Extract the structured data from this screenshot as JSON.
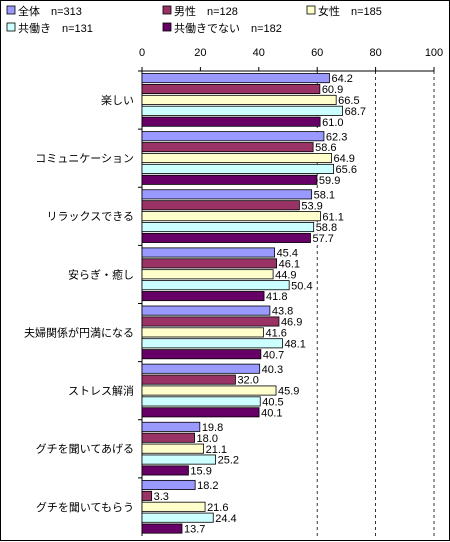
{
  "chart_data": {
    "type": "bar",
    "orientation": "horizontal",
    "categories": [
      "楽しい",
      "コミュニケーション",
      "リラックスできる",
      "安らぎ・癒し",
      "夫婦関係が円満になる",
      "ストレス解消",
      "グチを聞いてあげる",
      "グチを聞いてもらう"
    ],
    "series": [
      {
        "name": "全体　n=313",
        "color": "#9999ff",
        "values": [
          64.2,
          62.3,
          58.1,
          45.4,
          43.8,
          40.3,
          19.8,
          18.2
        ],
        "labels": [
          "64.2",
          "62.3",
          "58.1",
          "45.4",
          "43.8",
          "40.3",
          "19.8",
          "18.2"
        ]
      },
      {
        "name": "男性　n=128",
        "color": "#993366",
        "values": [
          60.9,
          58.6,
          53.9,
          46.1,
          46.9,
          32.0,
          18.0,
          3.3
        ],
        "labels": [
          "60.9",
          "58.6",
          "53.9",
          "46.1",
          "46.9",
          "32.0",
          "18.0",
          "3.3"
        ]
      },
      {
        "name": "女性　n=185",
        "color": "#ffffcc",
        "values": [
          66.5,
          64.9,
          61.1,
          44.9,
          41.6,
          45.9,
          21.1,
          21.6
        ],
        "labels": [
          "66.5",
          "64.9",
          "61.1",
          "44.9",
          "41.6",
          "45.9",
          "21.1",
          "21.6"
        ]
      },
      {
        "name": "共働き　n=131",
        "color": "#ccffff",
        "values": [
          68.7,
          65.6,
          58.8,
          50.4,
          48.1,
          40.5,
          25.2,
          24.4
        ],
        "labels": [
          "68.7",
          "65.6",
          "58.8",
          "50.4",
          "48.1",
          "40.5",
          "25.2",
          "24.4"
        ]
      },
      {
        "name": "共働きでない　n=182",
        "color": "#660066",
        "values": [
          61.0,
          59.9,
          57.7,
          41.8,
          40.7,
          40.1,
          15.9,
          13.7
        ],
        "labels": [
          "61.0",
          "59.9",
          "57.7",
          "41.8",
          "40.7",
          "40.1",
          "15.9",
          "13.7"
        ]
      }
    ],
    "xlim": [
      0,
      100
    ],
    "xticks": [
      "0",
      "20",
      "40",
      "60",
      "80",
      "100"
    ],
    "grid": "dashed vertical lines at 60, 80, 100",
    "legend": "top"
  }
}
